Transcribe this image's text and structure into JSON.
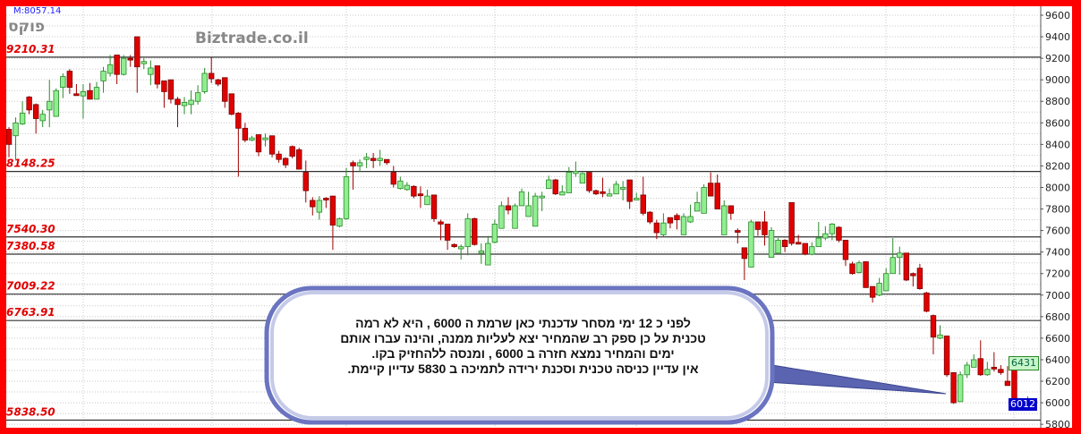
{
  "header": {
    "m_label": "M:8057.14",
    "symbol": "פוקס",
    "brand": "Biztrade.co.il"
  },
  "colors": {
    "frame": "#ff0000",
    "bull": "#90ee90",
    "bull_border": "#2a8a2a",
    "bear": "#e00000",
    "bear_border": "#7a0000",
    "level_text": "#e00000",
    "last_price_tag": "#0000cc",
    "prev_price_tag": "#c8f5c8"
  },
  "callout": {
    "lines": [
      "לפני  כ  12 ימי מסחר  עדכנתי כאן  שרמת ה  6000 , היא  לא  רמה",
      "טכנית  על  כן ספק  רב  שהמחיר  יצא  לעליות ממנה, והינה   עברו אותם",
      "ימים  והמחיר נמצא  חזרה   ב  6000 , ומנסה  ללהחזיק  בקו.",
      "אין עדיין  כניסה  טכנית  וסכנת ירידה לתמיכה  ב  5830  עדיין  קיימת."
    ]
  },
  "chart_data": {
    "type": "candlestick",
    "ylim": [
      5800,
      9600
    ],
    "y_ticks": [
      "9600",
      "9400",
      "9200",
      "9000",
      "8800",
      "8600",
      "8400",
      "8200",
      "8000",
      "7800",
      "7600",
      "7400",
      "7200",
      "7000",
      "6800",
      "6600",
      "6400",
      "6200",
      "6000",
      "5800"
    ],
    "grid": true,
    "levels": [
      {
        "label": "9210.31",
        "value": 9210.31
      },
      {
        "label": "8148.25",
        "value": 8148.25
      },
      {
        "label": "7540.30",
        "value": 7540.3
      },
      {
        "label": "7380.58",
        "value": 7380.58
      },
      {
        "label": "7009.22",
        "value": 7009.22
      },
      {
        "label": "6763.91",
        "value": 6763.91
      },
      {
        "label": "5838.50",
        "value": 5838.5
      }
    ],
    "price_tags": {
      "prev": "6431",
      "last": "6012"
    },
    "ohlc": [
      [
        8540,
        8560,
        8280,
        8400
      ],
      [
        8480,
        8650,
        8260,
        8600
      ],
      [
        8590,
        8800,
        8580,
        8690
      ],
      [
        8840,
        8850,
        8680,
        8720
      ],
      [
        8770,
        8780,
        8500,
        8640
      ],
      [
        8620,
        8720,
        8560,
        8680
      ],
      [
        8720,
        9000,
        8560,
        8800
      ],
      [
        8660,
        8920,
        8660,
        8900
      ],
      [
        8930,
        9060,
        8830,
        9030
      ],
      [
        9080,
        9100,
        8870,
        8930
      ],
      [
        8870,
        8960,
        8860,
        8860
      ],
      [
        8850,
        8960,
        8640,
        8890
      ],
      [
        8900,
        8970,
        8820,
        8820
      ],
      [
        8820,
        8980,
        8820,
        8930
      ],
      [
        8990,
        9120,
        8880,
        9080
      ],
      [
        9060,
        9230,
        9030,
        9140
      ],
      [
        9230,
        9230,
        8960,
        9050
      ],
      [
        9050,
        9230,
        9040,
        9200
      ],
      [
        9200,
        9230,
        9120,
        9190
      ],
      [
        9400,
        9400,
        8880,
        9120
      ],
      [
        9150,
        9200,
        9100,
        9170
      ],
      [
        9050,
        9180,
        8950,
        9110
      ],
      [
        9130,
        9130,
        8920,
        8960
      ],
      [
        8990,
        8990,
        8740,
        8890
      ],
      [
        9000,
        9000,
        8780,
        8820
      ],
      [
        8820,
        8840,
        8560,
        8770
      ],
      [
        8760,
        8840,
        8680,
        8790
      ],
      [
        8770,
        8900,
        8680,
        8810
      ],
      [
        8800,
        8950,
        8770,
        8880
      ],
      [
        8890,
        9110,
        8870,
        9060
      ],
      [
        9060,
        9210,
        8970,
        9010
      ],
      [
        9000,
        9010,
        8940,
        8960
      ],
      [
        9020,
        9020,
        8740,
        8800
      ],
      [
        8870,
        8870,
        8670,
        8680
      ],
      [
        8690,
        8700,
        8100,
        8550
      ],
      [
        8550,
        8600,
        8420,
        8440
      ],
      [
        8440,
        8480,
        8430,
        8460
      ],
      [
        8490,
        8490,
        8290,
        8330
      ],
      [
        8450,
        8500,
        8380,
        8460
      ],
      [
        8480,
        8480,
        8280,
        8310
      ],
      [
        8310,
        8340,
        8230,
        8260
      ],
      [
        8270,
        8280,
        8180,
        8210
      ],
      [
        8380,
        8390,
        8270,
        8290
      ],
      [
        8350,
        8370,
        8170,
        8170
      ],
      [
        8140,
        8250,
        7860,
        7970
      ],
      [
        7880,
        7910,
        7740,
        7820
      ],
      [
        7770,
        7920,
        7700,
        7880
      ],
      [
        7900,
        7910,
        7810,
        7890
      ],
      [
        7920,
        7920,
        7420,
        7650
      ],
      [
        7640,
        7720,
        7630,
        7710
      ],
      [
        7710,
        8180,
        7700,
        8100
      ],
      [
        8230,
        8250,
        7980,
        8200
      ],
      [
        8200,
        8260,
        8150,
        8230
      ],
      [
        8260,
        8320,
        8180,
        8280
      ],
      [
        8270,
        8320,
        8180,
        8250
      ],
      [
        8250,
        8350,
        8200,
        8270
      ],
      [
        8260,
        8260,
        8210,
        8230
      ],
      [
        8140,
        8200,
        8000,
        8030
      ],
      [
        7990,
        8100,
        7980,
        8060
      ],
      [
        7980,
        8050,
        7970,
        8020
      ],
      [
        8010,
        8020,
        7900,
        7920
      ],
      [
        7940,
        8010,
        7810,
        7930
      ],
      [
        7840,
        7980,
        7840,
        7920
      ],
      [
        7930,
        7930,
        7680,
        7710
      ],
      [
        7680,
        7700,
        7510,
        7660
      ],
      [
        7660,
        7660,
        7420,
        7510
      ],
      [
        7470,
        7480,
        7440,
        7450
      ],
      [
        7430,
        7470,
        7330,
        7450
      ],
      [
        7450,
        7760,
        7370,
        7710
      ],
      [
        7710,
        7720,
        7460,
        7470
      ],
      [
        7390,
        7480,
        7290,
        7410
      ],
      [
        7280,
        7550,
        7280,
        7480
      ],
      [
        7490,
        7700,
        7480,
        7660
      ],
      [
        7620,
        7870,
        7620,
        7830
      ],
      [
        7830,
        7910,
        7750,
        7790
      ],
      [
        7620,
        7850,
        7620,
        7830
      ],
      [
        7830,
        7990,
        7830,
        7960
      ],
      [
        7730,
        7960,
        7730,
        7830
      ],
      [
        7640,
        7950,
        7640,
        7920
      ],
      [
        7910,
        7960,
        7780,
        7920
      ],
      [
        7990,
        8110,
        7990,
        8070
      ],
      [
        8070,
        8080,
        7930,
        7940
      ],
      [
        7930,
        8020,
        7930,
        7960
      ],
      [
        7950,
        8190,
        7950,
        8140
      ],
      [
        8130,
        8240,
        8100,
        8150
      ],
      [
        8040,
        8140,
        8040,
        8130
      ],
      [
        8140,
        8140,
        7950,
        7970
      ],
      [
        7970,
        7980,
        7930,
        7940
      ],
      [
        7960,
        8090,
        7910,
        7950
      ],
      [
        7920,
        7990,
        7920,
        7940
      ],
      [
        7940,
        8060,
        7940,
        8030
      ],
      [
        7990,
        8060,
        7880,
        8000
      ],
      [
        8070,
        8070,
        7800,
        7870
      ],
      [
        7890,
        7950,
        7890,
        7900
      ],
      [
        7930,
        8100,
        7740,
        7760
      ],
      [
        7770,
        7780,
        7660,
        7680
      ],
      [
        7670,
        7700,
        7520,
        7580
      ],
      [
        7560,
        7760,
        7540,
        7670
      ],
      [
        7720,
        7720,
        7620,
        7670
      ],
      [
        7740,
        7760,
        7610,
        7700
      ],
      [
        7560,
        7760,
        7560,
        7730
      ],
      [
        7680,
        7840,
        7670,
        7730
      ],
      [
        7780,
        7960,
        7780,
        7860
      ],
      [
        7760,
        8030,
        7760,
        8000
      ],
      [
        8040,
        8140,
        7920,
        7920
      ],
      [
        8040,
        8120,
        7800,
        7800
      ],
      [
        7560,
        7880,
        7560,
        7830
      ],
      [
        7830,
        7830,
        7700,
        7760
      ],
      [
        7600,
        7620,
        7480,
        7590
      ],
      [
        7440,
        7440,
        7140,
        7340
      ],
      [
        7260,
        7700,
        7260,
        7680
      ],
      [
        7680,
        7680,
        7550,
        7610
      ],
      [
        7680,
        7780,
        7460,
        7560
      ],
      [
        7350,
        7630,
        7350,
        7600
      ],
      [
        7390,
        7530,
        7390,
        7510
      ],
      [
        7510,
        7520,
        7400,
        7450
      ],
      [
        7860,
        7860,
        7460,
        7480
      ],
      [
        7490,
        7560,
        7480,
        7480
      ],
      [
        7480,
        7480,
        7370,
        7380
      ],
      [
        7380,
        7490,
        7370,
        7450
      ],
      [
        7450,
        7680,
        7450,
        7530
      ],
      [
        7530,
        7640,
        7510,
        7570
      ],
      [
        7570,
        7670,
        7510,
        7660
      ],
      [
        7630,
        7640,
        7490,
        7510
      ],
      [
        7510,
        7510,
        7270,
        7330
      ],
      [
        7290,
        7310,
        7190,
        7200
      ],
      [
        7210,
        7320,
        7200,
        7300
      ],
      [
        7310,
        7310,
        7070,
        7070
      ],
      [
        7080,
        7080,
        6930,
        6980
      ],
      [
        7000,
        7160,
        6990,
        7110
      ],
      [
        7040,
        7250,
        7040,
        7200
      ],
      [
        7200,
        7530,
        7200,
        7350
      ],
      [
        7350,
        7450,
        7190,
        7390
      ],
      [
        7390,
        7390,
        7130,
        7140
      ],
      [
        7200,
        7210,
        7080,
        7180
      ],
      [
        7250,
        7290,
        7050,
        7060
      ],
      [
        7020,
        7030,
        6840,
        6850
      ],
      [
        6810,
        6820,
        6450,
        6610
      ],
      [
        6600,
        6720,
        6590,
        6630
      ],
      [
        6620,
        6620,
        6240,
        6260
      ],
      [
        6280,
        6280,
        5990,
        6000
      ],
      [
        6010,
        6290,
        6010,
        6260
      ],
      [
        6260,
        6380,
        6230,
        6350
      ],
      [
        6330,
        6450,
        6330,
        6400
      ],
      [
        6410,
        6580,
        6250,
        6260
      ],
      [
        6260,
        6380,
        6250,
        6310
      ],
      [
        6330,
        6470,
        6290,
        6320
      ],
      [
        6310,
        6350,
        6260,
        6280
      ],
      [
        6200,
        6340,
        6160,
        6160
      ],
      [
        6400,
        6400,
        6030,
        6040
      ],
      [
        6020,
        6030,
        5970,
        5990
      ],
      [
        5990,
        6060,
        5970,
        6010
      ],
      [
        6012,
        6012,
        6012,
        6012
      ]
    ]
  }
}
